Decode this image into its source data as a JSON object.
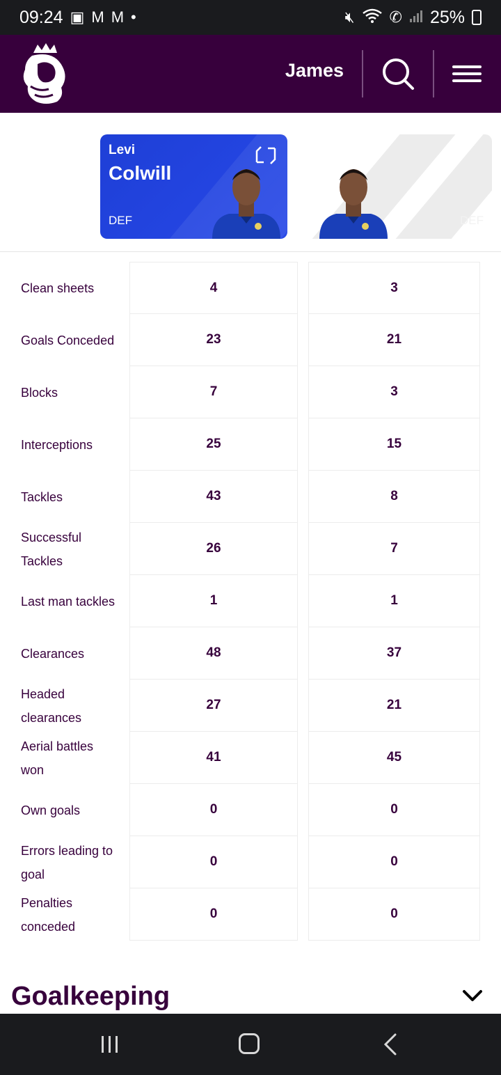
{
  "status_bar": {
    "time": "09:24",
    "battery": "25%"
  },
  "header": {
    "user_name": "James"
  },
  "players": [
    {
      "first_name": "Levi",
      "last_name": "Colwill",
      "position": "DEF"
    },
    {
      "first_name": "",
      "last_name": "",
      "position": "DEF"
    }
  ],
  "stats": [
    {
      "label": "Clean sheets",
      "p1": "4",
      "p2": "3"
    },
    {
      "label": "Goals Conceded",
      "p1": "23",
      "p2": "21"
    },
    {
      "label": "Blocks",
      "p1": "7",
      "p2": "3"
    },
    {
      "label": "Interceptions",
      "p1": "25",
      "p2": "15"
    },
    {
      "label": "Tackles",
      "p1": "43",
      "p2": "8"
    },
    {
      "label": "Successful Tackles",
      "p1": "26",
      "p2": "7"
    },
    {
      "label": "Last man tackles",
      "p1": "1",
      "p2": "1"
    },
    {
      "label": "Clearances",
      "p1": "48",
      "p2": "37"
    },
    {
      "label": "Headed clearances",
      "p1": "27",
      "p2": "21"
    },
    {
      "label": "Aerial battles won",
      "p1": "41",
      "p2": "45"
    },
    {
      "label": "Own goals",
      "p1": "0",
      "p2": "0"
    },
    {
      "label": "Errors leading to goal",
      "p1": "0",
      "p2": "0"
    },
    {
      "label": "Penalties conceded",
      "p1": "0",
      "p2": "0"
    }
  ],
  "section": {
    "title": "Goalkeeping"
  },
  "colors": {
    "brand_purple": "#37003c",
    "card_blue": "#2344e0"
  }
}
